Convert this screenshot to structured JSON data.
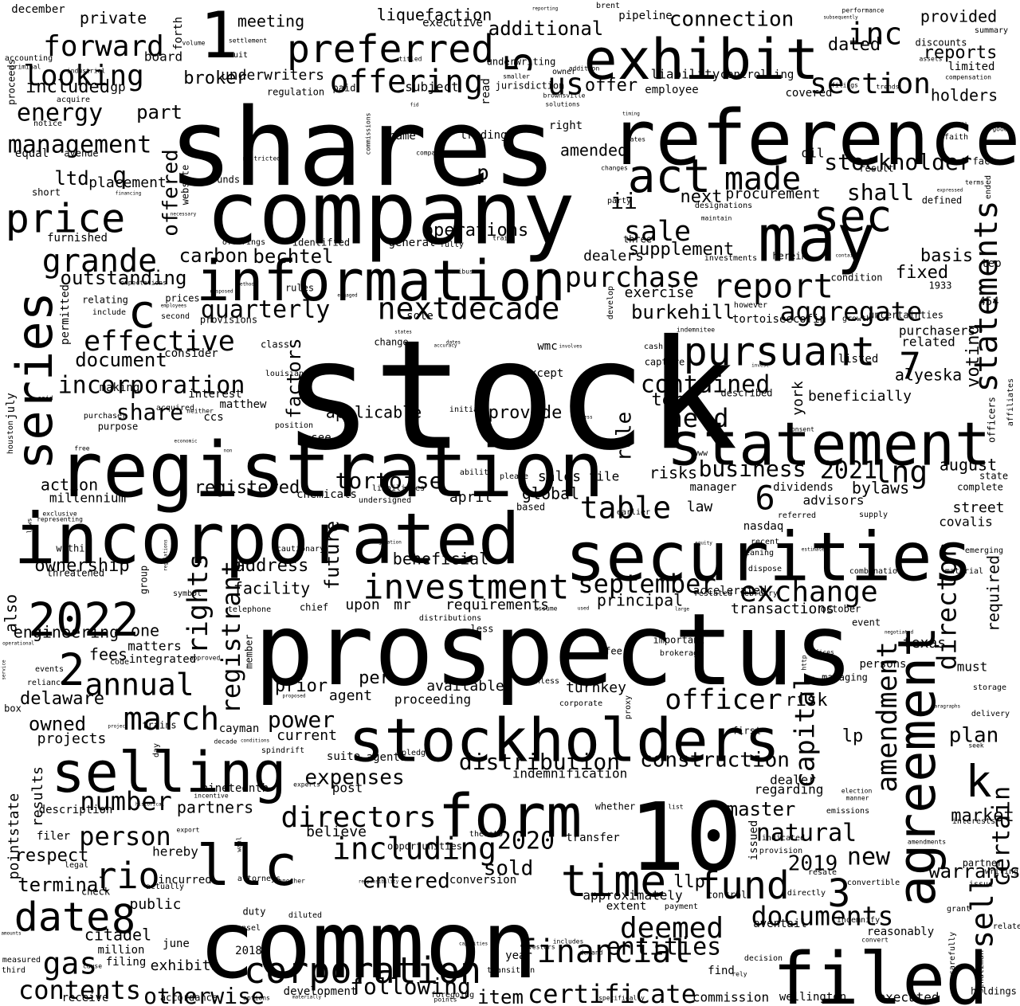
{
  "cloud": {
    "background": "#ffffff",
    "ink": "#000000",
    "words": [
      "stock",
      "shares",
      "company",
      "prospectus",
      "common",
      "registration",
      "reference",
      "incorporated",
      "securities",
      "statement",
      "information",
      "filed",
      "10",
      "may",
      "stockholders",
      "form",
      "selling",
      "exhibit",
      "series",
      "llc",
      "agreement",
      "2022",
      "preferred",
      "time",
      "1",
      "act",
      "sec",
      "offering",
      "pursuant",
      "price",
      "date",
      "corporation",
      "fund",
      "investment",
      "report",
      "amendment",
      "statements",
      "nextdecade",
      "including",
      "contents",
      "forward",
      "looking",
      "section",
      "purchase",
      "2",
      "8",
      "3",
      "k",
      "rio",
      "grande",
      "march",
      "annual",
      "gas",
      "financial",
      "made",
      "sale",
      "c",
      "5",
      "us",
      "directors",
      "stockholder",
      "effective",
      "incorporation",
      "aggregate",
      "documents",
      "director",
      "management",
      "energy",
      "rights",
      "registrant",
      "capital",
      "sell",
      "certain",
      "exchange",
      "deemed",
      "certificate",
      "table",
      "officer",
      "quarterly",
      "business",
      "contained",
      "held",
      "lng",
      "2021",
      "6",
      "7",
      "inc",
      "entities",
      "natural",
      "september",
      "burkehill",
      "tortoise",
      "factors",
      "bechtel",
      "carbon",
      "outstanding",
      "share",
      "document",
      "number",
      "person",
      "item",
      "following",
      "otherwise",
      "terminal",
      "delaware",
      "owned",
      "power",
      "expenses",
      "distribution",
      "construction",
      "master",
      "plan",
      "market",
      "warrants",
      "2020",
      "2019",
      "new",
      "sold",
      "entered",
      "liquefaction",
      "connection",
      "provided",
      "reports",
      "holders",
      "meeting",
      "private",
      "board",
      "broker",
      "additional",
      "underwriters",
      "q",
      "p",
      "ii",
      "part",
      "included",
      "ltd",
      "placement",
      "offered",
      "operations",
      "supplement",
      "dealers",
      "exercise",
      "procurement",
      "shall",
      "next",
      "fixed",
      "basis",
      "voting",
      "purchasers",
      "related",
      "alyeska",
      "august",
      "advisors",
      "street",
      "covalis",
      "dividends",
      "bylaws",
      "global",
      "registered",
      "action",
      "millennium",
      "april",
      "rule",
      "risks",
      "applicable",
      "provide",
      "sales",
      "file",
      "ownership",
      "address",
      "facility",
      "future",
      "beneficial",
      "upon",
      "mr",
      "requirements",
      "principal",
      "transactions",
      "accelerated",
      "required",
      "texas",
      "persons",
      "must",
      "engineering",
      "one",
      "fees",
      "matters",
      "integrated",
      "also",
      "prior",
      "per",
      "available",
      "agent",
      "proceeding",
      "turnkey",
      "risk",
      "lp",
      "current",
      "suite",
      "agents",
      "dealer",
      "regarding",
      "indemnification",
      "results",
      "projects",
      "pointstate",
      "description",
      "partners",
      "nineteenth",
      "post",
      "believe",
      "respect",
      "filer",
      "hereby",
      "transfer",
      "issued",
      "approximately",
      "llp",
      "public",
      "incurred",
      "conversion",
      "citadel",
      "million",
      "filing",
      "june",
      "exhibits",
      "2018",
      "development",
      "accordance",
      "receive",
      "commission",
      "wellington",
      "executed",
      "holdings",
      "aventail",
      "reasonably",
      "year",
      "find",
      "certain",
      "sec",
      "liability",
      "controlling",
      "offer",
      "subject",
      "paid",
      "regulation",
      "general",
      "identified",
      "herein",
      "three",
      "employee",
      "prices",
      "provisions",
      "consider",
      "interest",
      "ccs",
      "matthew",
      "purpose",
      "making",
      "acquired",
      "louisiana",
      "position",
      "initial",
      "except",
      "wmc",
      "capture",
      "cash",
      "term",
      "described",
      "york",
      "listed",
      "beneficially",
      "tortoiseecofin",
      "growth",
      "uncertainties",
      "however",
      "condition",
      "1933",
      "454",
      "tep",
      "affiliates",
      "officers",
      "state",
      "complete",
      "supply",
      "referred",
      "nasdaq",
      "manager",
      "law",
      "based",
      "earlier",
      "see",
      "please",
      "ability",
      "chemicals",
      "liabilities",
      "undersigned",
      "threatened",
      "within",
      "group",
      "cautionary",
      "meaning",
      "recent",
      "emerging",
      "material",
      "combination",
      "dispose",
      "restated",
      "february",
      "october",
      "event",
      "important",
      "brokerage",
      "fee",
      "managing",
      "storage",
      "delivery",
      "first",
      "seek",
      "election",
      "manner",
      "emissions",
      "interests",
      "partner",
      "issue",
      "writing",
      "grant",
      "relates",
      "amendments",
      "resale",
      "convertible",
      "indemnify",
      "payment",
      "directly",
      "extent",
      "control",
      "corporate",
      "proxy",
      "demand",
      "investors",
      "includes",
      "unless",
      "thereto",
      "opportunities",
      "attorneys",
      "another",
      "responsibility",
      "diluted",
      "legal",
      "check",
      "actually",
      "duty",
      "counsel",
      "measured",
      "third",
      "amounts",
      "cause",
      "options",
      "materially",
      "specifically",
      "foregoing",
      "points",
      "capacities",
      "transition",
      "whether",
      "list",
      "decision",
      "rely",
      "convert",
      "carefully",
      "schatzman",
      "december",
      "accounting",
      "criminal",
      "proceeds",
      "notice",
      "equal",
      "avenue",
      "short",
      "said",
      "houston",
      "july",
      "furnished",
      "permitted",
      "relating",
      "include",
      "expectations",
      "employees",
      "second",
      "class",
      "dates",
      "accuracy",
      "states",
      "website",
      "executive",
      "forth",
      "volume",
      "settlement",
      "suit",
      "industrial",
      "acquire",
      "gp",
      "titled",
      "underwriting",
      "jurisdiction",
      "brownsville",
      "solutions",
      "owner",
      "addition",
      "reporting",
      "brent",
      "pipeline",
      "performance",
      "subsequently",
      "summary",
      "assets",
      "compensation",
      "filings",
      "trends",
      "discounts",
      "limited",
      "reports",
      "trading",
      "compass",
      "commissions",
      "name",
      "read",
      "right",
      "amended",
      "restricted",
      "funds",
      "financing",
      "necessary",
      "offerings",
      "train",
      "fully",
      "smaller",
      "omnibus",
      "sole",
      "methods",
      "disposed",
      "rules",
      "engaged",
      "change",
      "involves",
      "develop",
      "indemnitee",
      "invest",
      "consent",
      "free",
      "economic",
      "non",
      "neither",
      "process",
      "purchaser",
      "exclusive",
      "representing",
      "laws",
      "origination",
      "regulations",
      "symbol",
      "telephone",
      "chief",
      "distributions",
      "assume",
      "used",
      "large",
      "less",
      "member",
      "code",
      "approved",
      "operational",
      "service",
      "events",
      "reliance",
      "box",
      "day",
      "project",
      "trains",
      "decade",
      "conditions",
      "cayman",
      "spindrift",
      "proposed",
      "pledge",
      "experts",
      "incentive",
      "historical",
      "export",
      "wahl",
      "provision",
      "indicated",
      "party",
      "designations",
      "maintain",
      "investments",
      "contains",
      "defined",
      "terms",
      "ended",
      "expressed",
      "result",
      "fact",
      "good",
      "faith",
      "oil",
      "changes",
      "gates",
      "timing",
      "covered",
      "well",
      "paragraphs",
      "penalty",
      "equity",
      "estimated",
      "negotiated",
      "offices",
      "http",
      "www",
      "dated",
      "website",
      "gp",
      "fid",
      "holders"
    ]
  }
}
